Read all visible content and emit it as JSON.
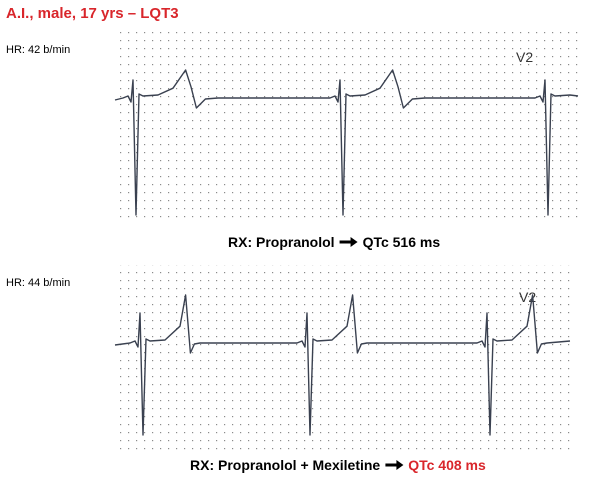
{
  "header": {
    "title": "A.I., male, 17 yrs – LQT3"
  },
  "strips": [
    {
      "heart_rate": "HR: 42 b/min",
      "lead": "V2",
      "therapy": "RX: Propranolol",
      "qtc": "QTc 516 ms"
    },
    {
      "heart_rate": "HR: 44 b/min",
      "lead": "V2",
      "therapy": "RX: Propranolol + Mexiletine",
      "qtc": "QTc 408 ms"
    }
  ]
}
